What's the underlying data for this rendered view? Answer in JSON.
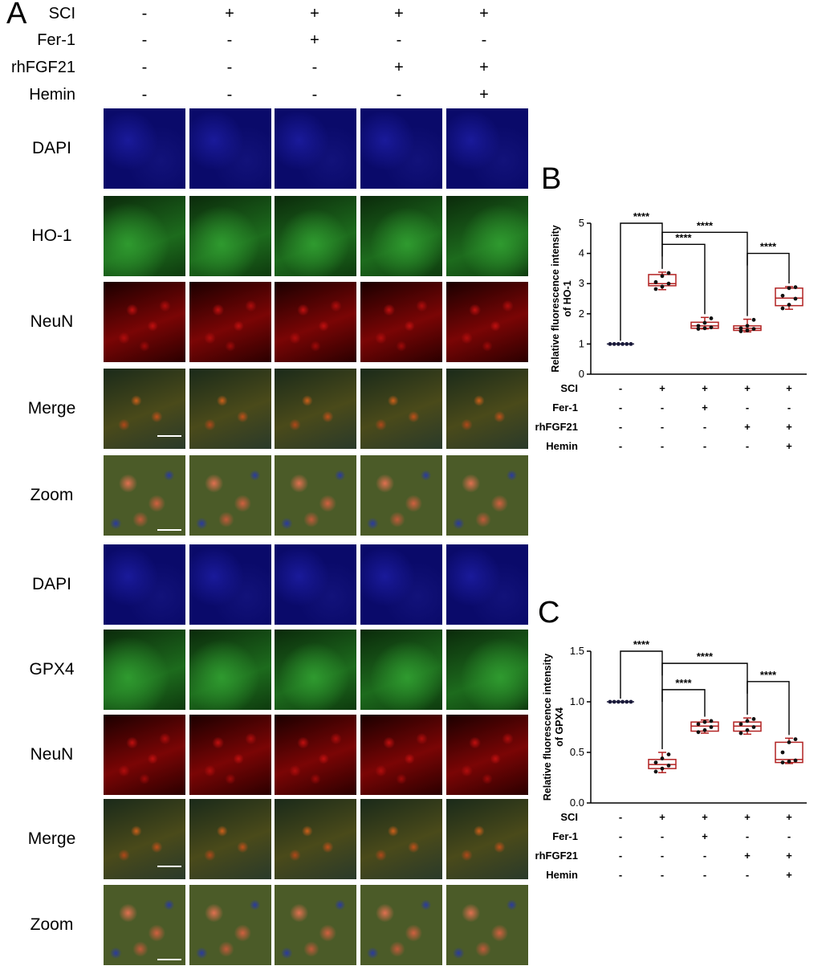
{
  "panel_labels": {
    "a": "A",
    "b": "B",
    "c": "C"
  },
  "treatments": [
    {
      "label": "SCI",
      "marks": [
        "-",
        "+",
        "+",
        "+",
        "+"
      ]
    },
    {
      "label": "Fer-1",
      "marks": [
        "-",
        "-",
        "+",
        "-",
        "-"
      ]
    },
    {
      "label": "rhFGF21",
      "marks": [
        "-",
        "-",
        "-",
        "+",
        "+"
      ]
    },
    {
      "label": "Hemin",
      "marks": [
        "-",
        "-",
        "-",
        "-",
        "+"
      ]
    }
  ],
  "image_rows_top": [
    "DAPI",
    "HO-1",
    "NeuN",
    "Merge",
    "Zoom"
  ],
  "image_rows_bottom": [
    "DAPI",
    "GPX4",
    "NeuN",
    "Merge",
    "Zoom"
  ],
  "colors": {
    "dapi": "#0a0a6a",
    "green": "#1d6b1d",
    "red": "#7a0505",
    "merge": "#4a4a1a",
    "zoom": "#4b5b28",
    "box": "#b22222",
    "points": "#111111"
  },
  "chart_data": [
    {
      "type": "box",
      "ylabel": "Relative fluorescence intensity of HO-1",
      "ylim": [
        0,
        5
      ],
      "yticks": [
        "0",
        "1",
        "2",
        "3",
        "4",
        "5"
      ],
      "treatments": [
        {
          "label": "SCI",
          "marks": [
            "-",
            "+",
            "+",
            "+",
            "+"
          ]
        },
        {
          "label": "Fer-1",
          "marks": [
            "-",
            "-",
            "+",
            "-",
            "-"
          ]
        },
        {
          "label": "rhFGF21",
          "marks": [
            "-",
            "-",
            "-",
            "+",
            "+"
          ]
        },
        {
          "label": "Hemin",
          "marks": [
            "-",
            "-",
            "-",
            "-",
            "+"
          ]
        }
      ],
      "groups": [
        {
          "min": 1.0,
          "q1": 1.0,
          "median": 1.0,
          "q3": 1.0,
          "max": 1.0,
          "points": [
            1.0,
            1.0,
            1.0,
            1.0,
            1.0,
            1.0
          ]
        },
        {
          "min": 2.8,
          "q1": 2.93,
          "median": 3.0,
          "q3": 3.3,
          "max": 3.38,
          "points": [
            2.82,
            2.9,
            3.0,
            3.05,
            3.25,
            3.35
          ]
        },
        {
          "min": 1.5,
          "q1": 1.52,
          "median": 1.6,
          "q3": 1.72,
          "max": 1.88,
          "points": [
            1.5,
            1.52,
            1.55,
            1.6,
            1.7,
            1.85
          ]
        },
        {
          "min": 1.4,
          "q1": 1.45,
          "median": 1.52,
          "q3": 1.6,
          "max": 1.82,
          "points": [
            1.42,
            1.45,
            1.5,
            1.52,
            1.6,
            1.8
          ]
        },
        {
          "min": 2.15,
          "q1": 2.27,
          "median": 2.52,
          "q3": 2.85,
          "max": 2.9,
          "points": [
            2.18,
            2.3,
            2.5,
            2.6,
            2.85,
            2.88
          ]
        }
      ],
      "comparisons": [
        {
          "from": 0,
          "to": 1,
          "label": "****"
        },
        {
          "from": 1,
          "to": 2,
          "label": "****"
        },
        {
          "from": 1,
          "to": 3,
          "label": "****"
        },
        {
          "from": 3,
          "to": 4,
          "label": "****"
        }
      ]
    },
    {
      "type": "box",
      "ylabel": "Relative fluorescence intensity of GPX4",
      "ylim": [
        0,
        1.5
      ],
      "yticks": [
        "0.0",
        "0.5",
        "1.0",
        "1.5"
      ],
      "treatments": [
        {
          "label": "SCI",
          "marks": [
            "-",
            "+",
            "+",
            "+",
            "+"
          ]
        },
        {
          "label": "Fer-1",
          "marks": [
            "-",
            "-",
            "+",
            "-",
            "-"
          ]
        },
        {
          "label": "rhFGF21",
          "marks": [
            "-",
            "-",
            "-",
            "+",
            "+"
          ]
        },
        {
          "label": "Hemin",
          "marks": [
            "-",
            "-",
            "-",
            "-",
            "+"
          ]
        }
      ],
      "groups": [
        {
          "min": 1.0,
          "q1": 1.0,
          "median": 1.0,
          "q3": 1.0,
          "max": 1.0,
          "points": [
            1.0,
            1.0,
            1.0,
            1.0,
            1.0,
            1.0
          ]
        },
        {
          "min": 0.3,
          "q1": 0.34,
          "median": 0.38,
          "q3": 0.43,
          "max": 0.5,
          "points": [
            0.31,
            0.34,
            0.37,
            0.4,
            0.44,
            0.48
          ]
        },
        {
          "min": 0.69,
          "q1": 0.71,
          "median": 0.76,
          "q3": 0.8,
          "max": 0.82,
          "points": [
            0.7,
            0.72,
            0.75,
            0.78,
            0.8,
            0.81
          ]
        },
        {
          "min": 0.68,
          "q1": 0.71,
          "median": 0.76,
          "q3": 0.8,
          "max": 0.84,
          "points": [
            0.69,
            0.72,
            0.75,
            0.78,
            0.81,
            0.83
          ]
        },
        {
          "min": 0.39,
          "q1": 0.4,
          "median": 0.43,
          "q3": 0.6,
          "max": 0.64,
          "points": [
            0.4,
            0.41,
            0.42,
            0.5,
            0.6,
            0.63
          ]
        }
      ],
      "comparisons": [
        {
          "from": 0,
          "to": 1,
          "label": "****"
        },
        {
          "from": 1,
          "to": 2,
          "label": "****"
        },
        {
          "from": 1,
          "to": 3,
          "label": "****"
        },
        {
          "from": 3,
          "to": 4,
          "label": "****"
        }
      ]
    }
  ]
}
